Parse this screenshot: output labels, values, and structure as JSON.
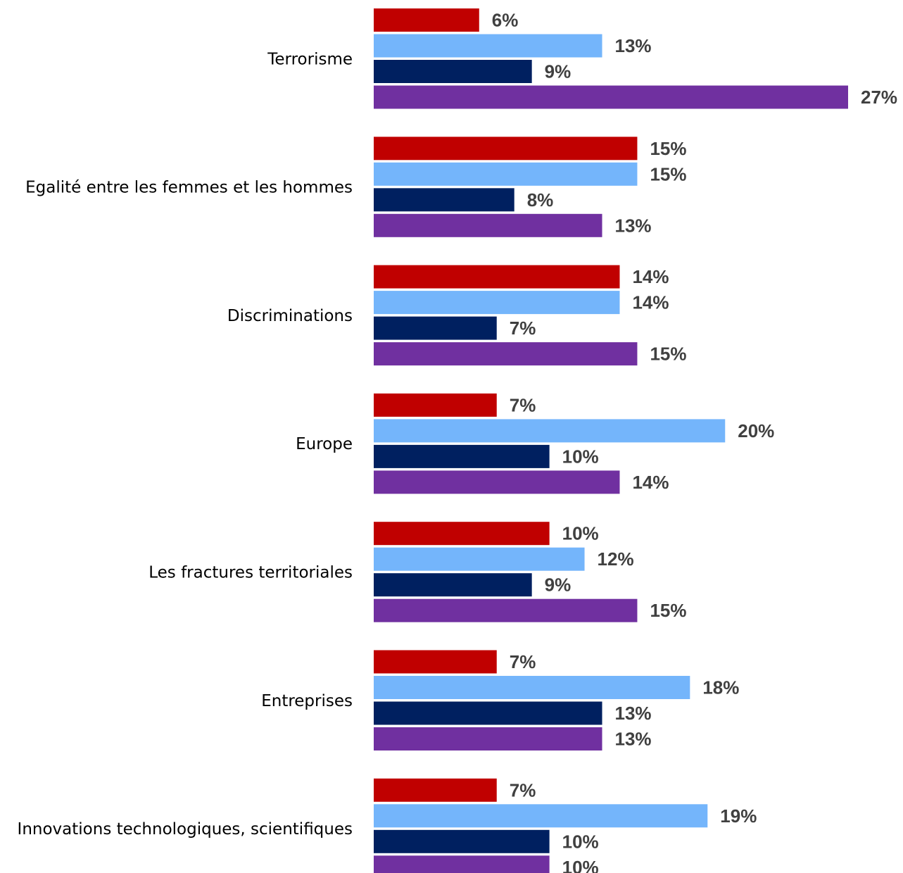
{
  "chart_data": {
    "type": "bar",
    "orientation": "horizontal",
    "title": "",
    "xlabel": "",
    "ylabel": "",
    "xlim": [
      0,
      27
    ],
    "grid": false,
    "legend": "none",
    "value_suffix": "%",
    "categories": [
      "Terrorisme",
      "Egalité entre les femmes et les hommes",
      "Discriminations",
      "Europe",
      "Les fractures territoriales",
      "Entreprises",
      "Innovations technologiques, scientifiques"
    ],
    "series": [
      {
        "color": "#C00000",
        "values": [
          6,
          15,
          14,
          7,
          10,
          7,
          7
        ]
      },
      {
        "color": "#74B5FB",
        "values": [
          13,
          15,
          14,
          20,
          12,
          18,
          19
        ]
      },
      {
        "color": "#002060",
        "values": [
          9,
          8,
          7,
          10,
          9,
          13,
          10
        ]
      },
      {
        "color": "#7030A0",
        "values": [
          27,
          13,
          15,
          14,
          15,
          13,
          10
        ]
      }
    ]
  }
}
